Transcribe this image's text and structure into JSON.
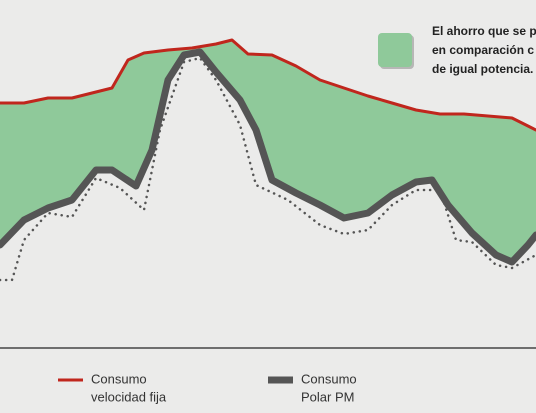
{
  "chart_data": {
    "type": "line",
    "annotation": [
      "El ahorro que se p",
      "en comparación c",
      "de igual potencia."
    ],
    "fill_color": "#8fc99a",
    "xlim": [
      0,
      536
    ],
    "ylim": [
      0,
      348
    ],
    "series": [
      {
        "name": [
          "Consumo",
          "velocidad fija"
        ],
        "color": "#c0261d",
        "width": 3,
        "x": [
          0,
          24,
          48,
          72,
          96,
          112,
          128,
          144,
          168,
          192,
          216,
          232,
          248,
          272,
          296,
          320,
          344,
          368,
          392,
          416,
          440,
          464,
          488,
          512,
          528,
          536
        ],
        "values": [
          245,
          245,
          250,
          250,
          256,
          260,
          288,
          295,
          298,
          300,
          304,
          308,
          294,
          293,
          282,
          268,
          260,
          252,
          245,
          238,
          234,
          234,
          232,
          230,
          222,
          218
        ]
      },
      {
        "name": [
          "Consumo",
          "Polar PM"
        ],
        "color": "#555555",
        "width": 7,
        "x": [
          0,
          24,
          48,
          72,
          96,
          112,
          136,
          152,
          168,
          184,
          200,
          216,
          240,
          256,
          272,
          296,
          320,
          344,
          368,
          392,
          416,
          432,
          448,
          472,
          496,
          512,
          528,
          536
        ],
        "values": [
          103,
          128,
          140,
          148,
          178,
          178,
          162,
          198,
          268,
          293,
          296,
          276,
          248,
          218,
          168,
          155,
          143,
          130,
          135,
          153,
          166,
          168,
          143,
          115,
          93,
          86,
          103,
          113
        ]
      },
      {
        "color": "#555555",
        "width": 2.5,
        "dash": true,
        "x": [
          0,
          12,
          24,
          48,
          72,
          96,
          120,
          144,
          160,
          184,
          200,
          216,
          240,
          256,
          288,
          320,
          344,
          368,
          392,
          416,
          440,
          456,
          472,
          496,
          512,
          536
        ],
        "values": [
          68,
          68,
          108,
          135,
          131,
          170,
          160,
          138,
          218,
          286,
          290,
          268,
          223,
          163,
          148,
          123,
          114,
          118,
          143,
          158,
          158,
          108,
          106,
          83,
          80,
          93
        ]
      }
    ]
  }
}
